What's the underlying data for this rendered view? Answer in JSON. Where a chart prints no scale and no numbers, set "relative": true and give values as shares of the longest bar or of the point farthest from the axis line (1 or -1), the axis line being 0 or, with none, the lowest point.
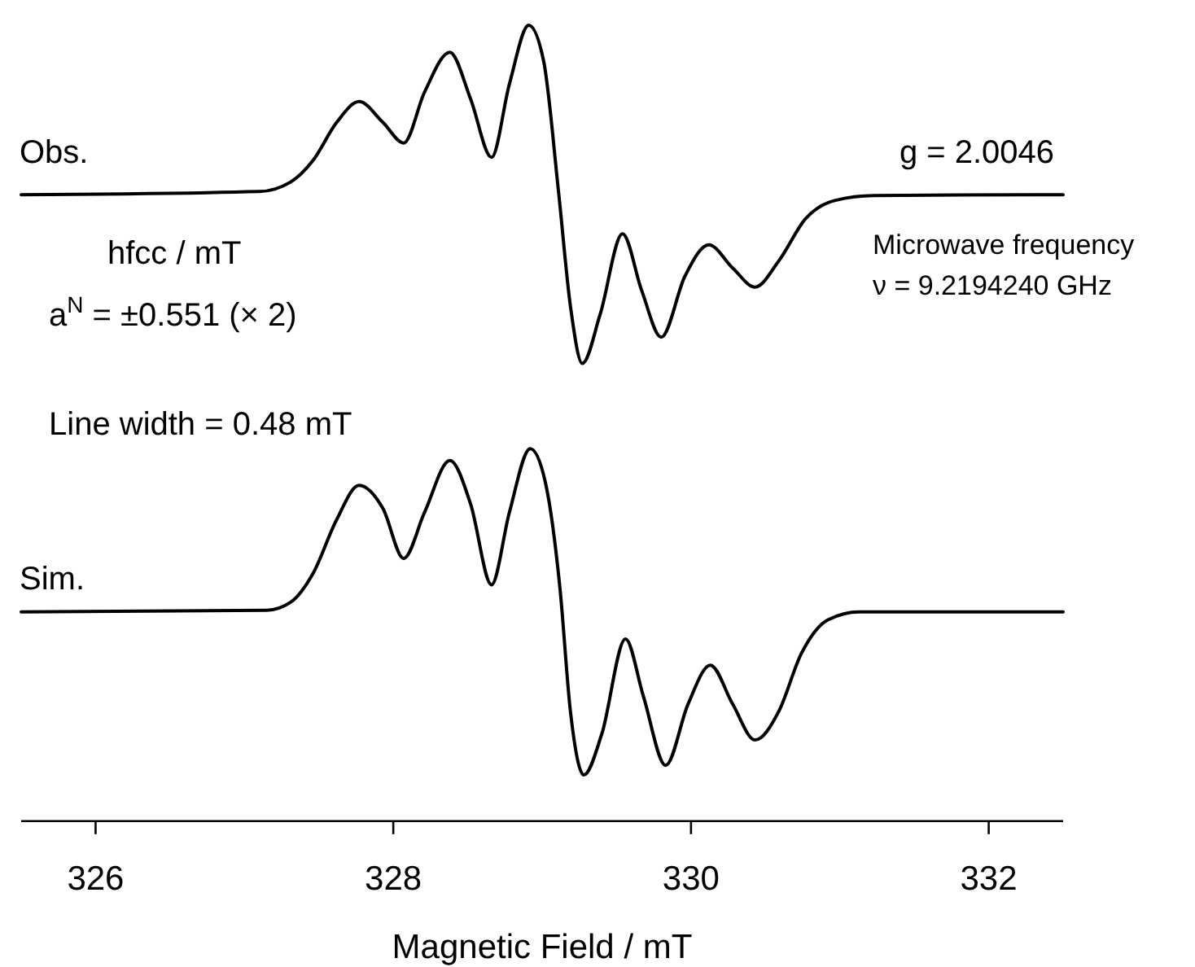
{
  "chart_data": {
    "type": "line",
    "relative": true,
    "xlim": [
      325.5,
      332.5
    ],
    "xticks": [
      326,
      328,
      330,
      332
    ],
    "tick_labels": "x",
    "grid": false,
    "xlabel": "Magnetic Field / mT",
    "annotations": [
      "g = 2.0046",
      "hfcc / mT",
      "a$^{N}$ = ±0.551 (× 2)",
      "Microwave frequency",
      "ν = 9.2194240 GHz",
      "Line width = 0.48 mT"
    ],
    "series": [
      {
        "name": "Obs.",
        "color": "#000000",
        "x": [
          325.5,
          327.1,
          327.31,
          327.46,
          327.62,
          327.77,
          327.93,
          328.07,
          328.21,
          328.38,
          328.52,
          328.66,
          328.78,
          328.91,
          329.01,
          329.11,
          329.19,
          329.27,
          329.39,
          329.54,
          329.67,
          329.8,
          329.96,
          330.12,
          330.28,
          330.43,
          330.59,
          330.77,
          330.97,
          331.23,
          332.5
        ],
        "values": [
          0.787,
          0.791,
          0.803,
          0.83,
          0.878,
          0.904,
          0.878,
          0.852,
          0.916,
          0.966,
          0.907,
          0.834,
          0.926,
          1.0,
          0.955,
          0.791,
          0.647,
          0.575,
          0.637,
          0.738,
          0.666,
          0.608,
          0.685,
          0.724,
          0.695,
          0.671,
          0.704,
          0.757,
          0.78,
          0.786,
          0.787
        ]
      },
      {
        "name": "Sim.",
        "color": "#000000",
        "x": [
          325.5,
          327.15,
          327.31,
          327.46,
          327.62,
          327.77,
          327.93,
          328.07,
          328.21,
          328.38,
          328.52,
          328.66,
          328.78,
          328.92,
          329.02,
          329.12,
          329.19,
          329.28,
          329.4,
          329.56,
          329.68,
          329.83,
          329.98,
          330.13,
          330.28,
          330.43,
          330.59,
          330.74,
          330.92,
          331.13,
          332.5
        ],
        "values": [
          0.263,
          0.265,
          0.275,
          0.311,
          0.379,
          0.422,
          0.393,
          0.33,
          0.388,
          0.453,
          0.398,
          0.297,
          0.388,
          0.468,
          0.427,
          0.292,
          0.138,
          0.058,
          0.109,
          0.229,
          0.157,
          0.07,
          0.147,
          0.196,
          0.147,
          0.102,
          0.138,
          0.21,
          0.253,
          0.263,
          0.263
        ]
      }
    ]
  }
}
